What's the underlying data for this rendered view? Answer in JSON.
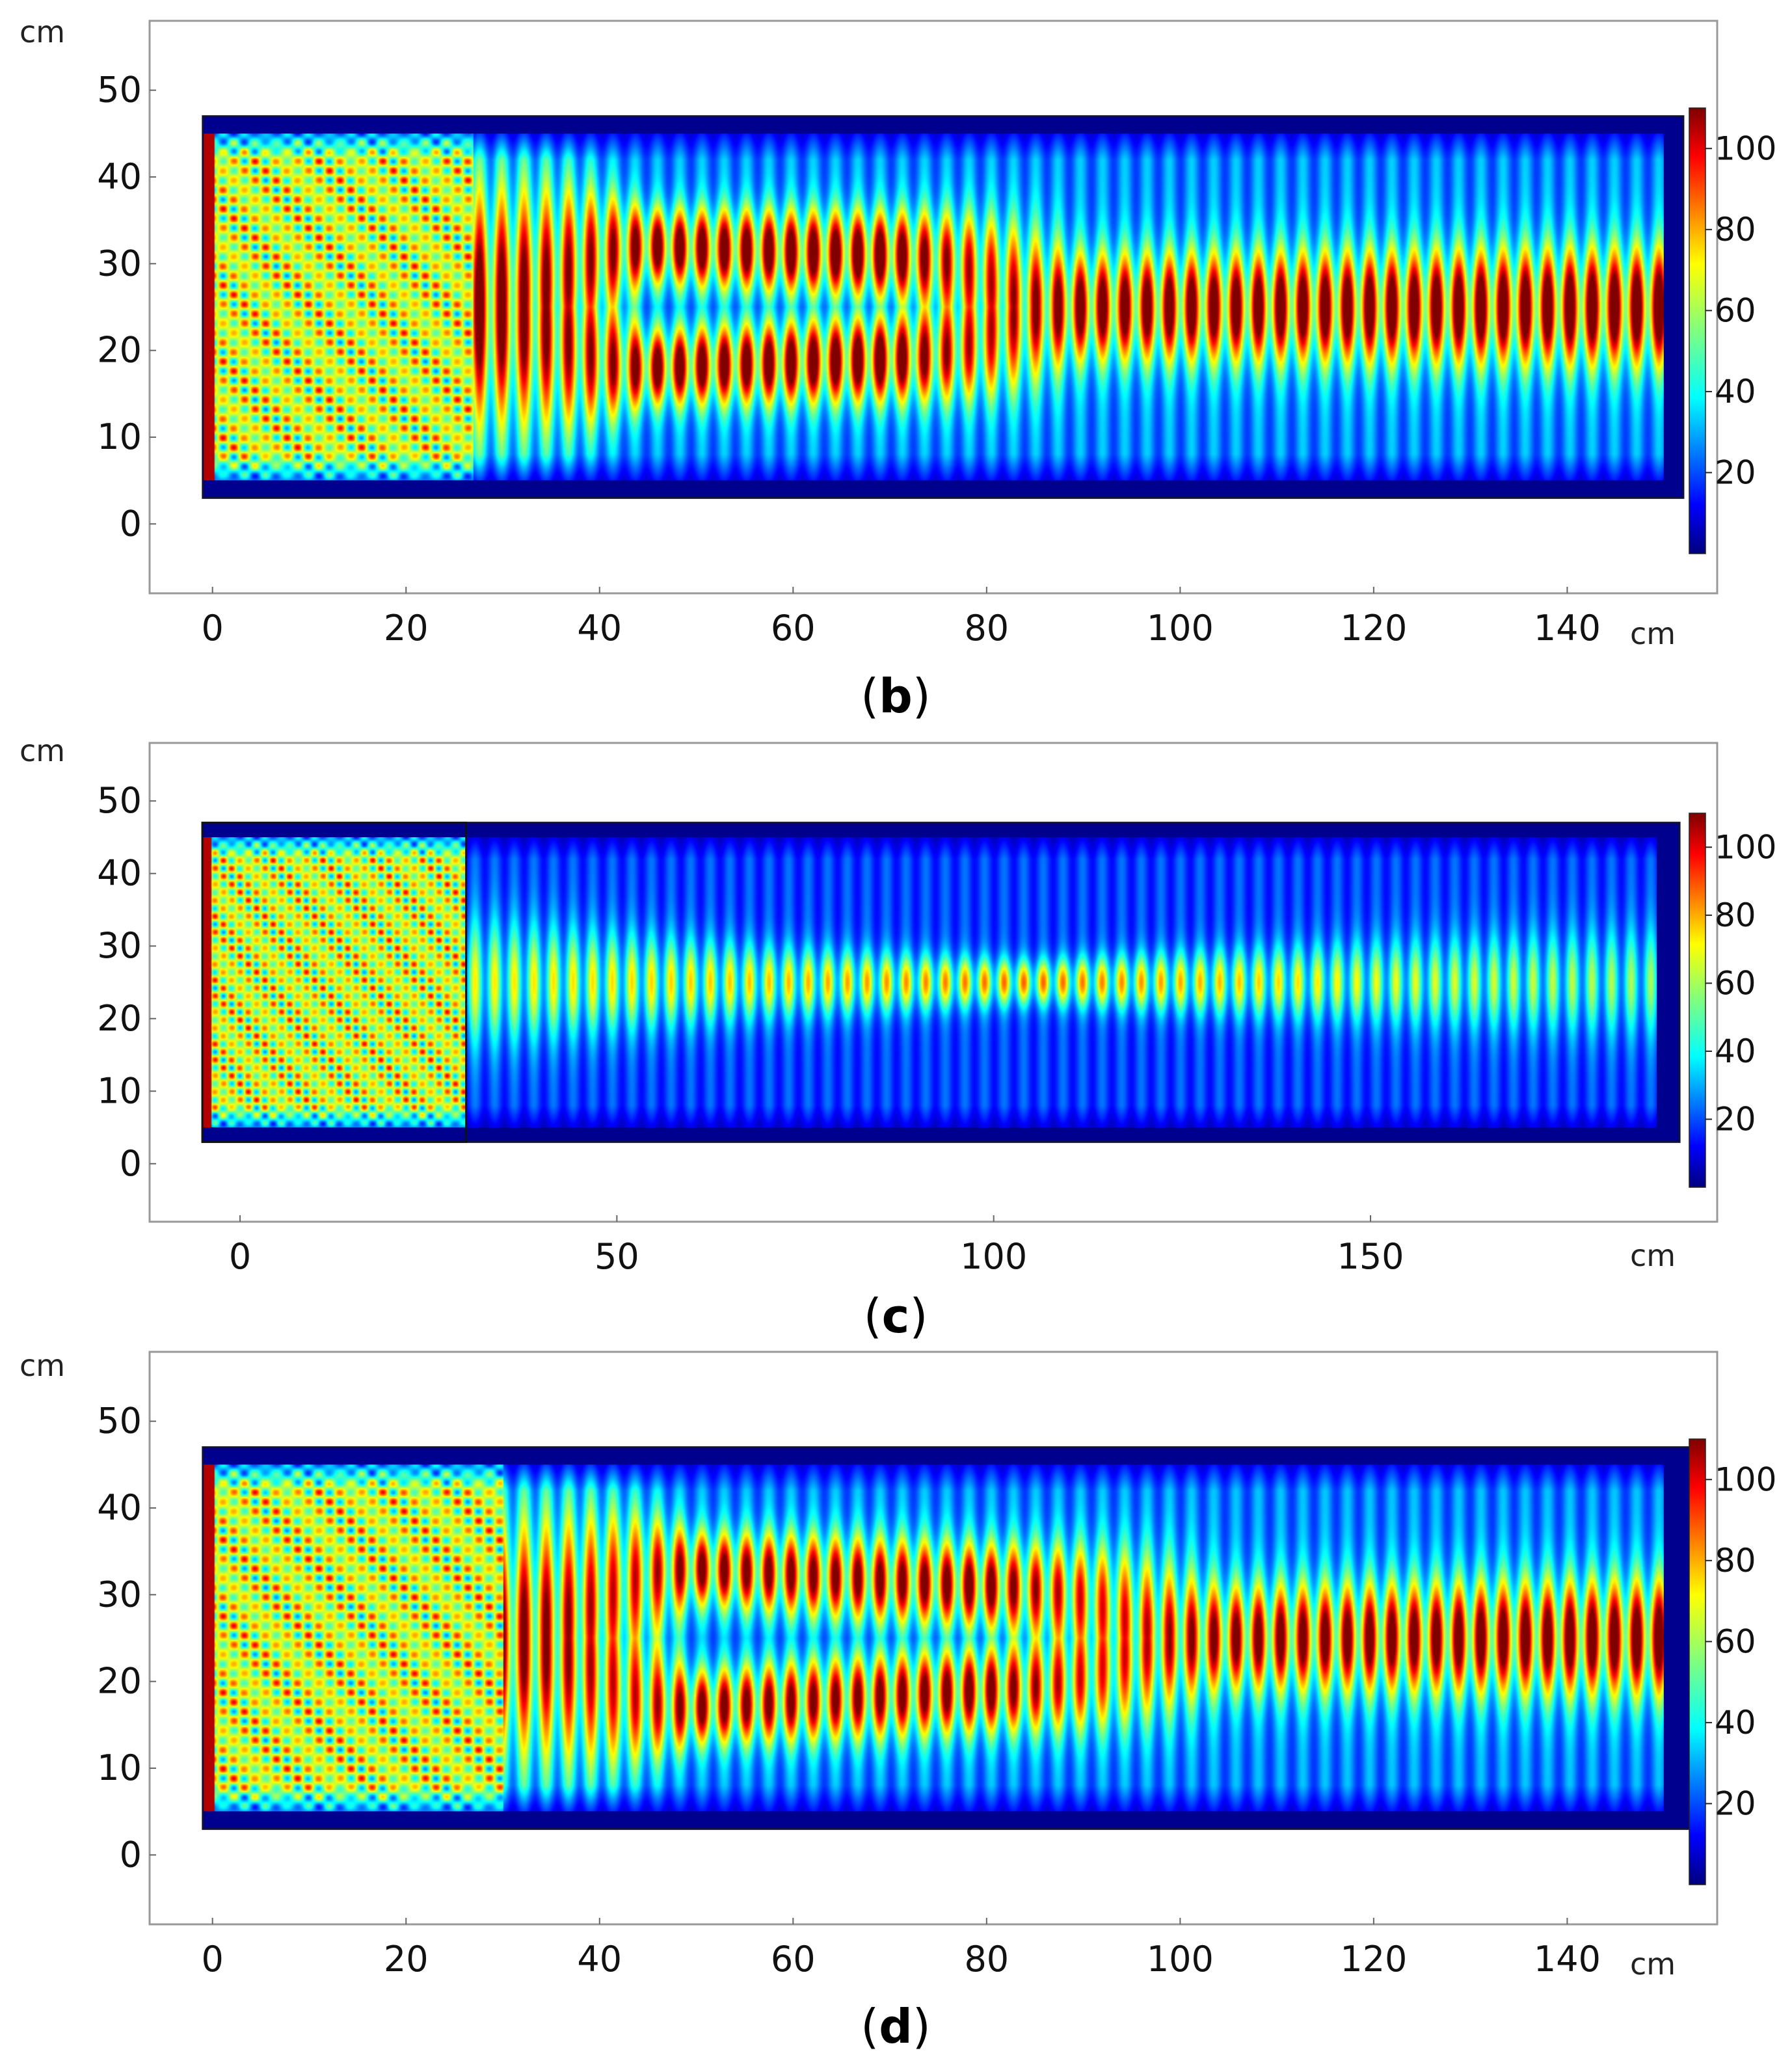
{
  "panels": [
    {
      "caption_open": "(",
      "caption_letter": "b",
      "caption_close": ")",
      "chart_data": {
        "type": "heatmap",
        "xlabel": "cm",
        "ylabel": "cm",
        "xlim": [
          -6.5,
          155.5
        ],
        "ylim": [
          -8,
          58
        ],
        "xticks": [
          0,
          20,
          40,
          60,
          80,
          100,
          120,
          140
        ],
        "yticks": [
          0,
          10,
          20,
          30,
          40,
          50
        ],
        "domain_x": [
          -1,
          152
        ],
        "domain_y": [
          3,
          47
        ],
        "field_x": [
          -1,
          150
        ],
        "field_y": [
          5,
          45
        ],
        "inner_box_x": null,
        "colorbar": {
          "range": [
            0,
            110
          ],
          "ticks": [
            20,
            40,
            60,
            80,
            100
          ],
          "colormap": "jet"
        },
        "field": {
          "ripple_period_cm": 2.3,
          "source_zone_end_cm": 27,
          "beam": [
            {
              "x": 0,
              "centers": [
                25
              ],
              "width": 24,
              "amp": 0.85
            },
            {
              "x": 27,
              "centers": [
                25
              ],
              "width": 22,
              "amp": 0.85
            },
            {
              "x": 45,
              "centers": [
                18,
                32
              ],
              "width": 7,
              "amp": 0.85
            },
            {
              "x": 70,
              "centers": [
                19,
                31
              ],
              "width": 8,
              "amp": 0.9
            },
            {
              "x": 90,
              "centers": [
                25
              ],
              "width": 10,
              "amp": 0.85
            },
            {
              "x": 150,
              "centers": [
                25
              ],
              "width": 11,
              "amp": 0.92
            }
          ],
          "background": 0.33
        }
      }
    },
    {
      "caption_open": "(",
      "caption_letter": "c",
      "caption_close": ")",
      "chart_data": {
        "type": "heatmap",
        "xlabel": "cm",
        "ylabel": "cm",
        "xlim": [
          -12,
          196
        ],
        "ylim": [
          -8,
          58
        ],
        "xticks": [
          0,
          50,
          100,
          150
        ],
        "yticks": [
          0,
          10,
          20,
          30,
          40,
          50
        ],
        "domain_x": [
          -5,
          191
        ],
        "domain_y": [
          3,
          47
        ],
        "field_x": [
          -5,
          188
        ],
        "field_y": [
          5,
          45
        ],
        "inner_box_x": [
          -5,
          30
        ],
        "colorbar": {
          "range": [
            0,
            110
          ],
          "ticks": [
            20,
            40,
            60,
            80,
            100
          ],
          "colormap": "jet"
        },
        "field": {
          "ripple_period_cm": 2.6,
          "source_zone_end_cm": 30,
          "beam": [
            {
              "x": 30,
              "centers": [
                25
              ],
              "width": 14,
              "amp": 0.4
            },
            {
              "x": 70,
              "centers": [
                25
              ],
              "width": 8,
              "amp": 0.45
            },
            {
              "x": 105,
              "centers": [
                25
              ],
              "width": 5,
              "amp": 0.55
            },
            {
              "x": 150,
              "centers": [
                25
              ],
              "width": 9,
              "amp": 0.38
            },
            {
              "x": 188,
              "centers": [
                25
              ],
              "width": 12,
              "amp": 0.3
            }
          ],
          "background": 0.24
        }
      }
    },
    {
      "caption_open": "(",
      "caption_letter": "d",
      "caption_close": ")",
      "chart_data": {
        "type": "heatmap",
        "xlabel": "cm",
        "ylabel": "cm",
        "xlim": [
          -6.5,
          155.5
        ],
        "ylim": [
          -8,
          58
        ],
        "xticks": [
          0,
          20,
          40,
          60,
          80,
          100,
          120,
          140
        ],
        "yticks": [
          0,
          10,
          20,
          30,
          40,
          50
        ],
        "domain_x": [
          -1,
          153
        ],
        "domain_y": [
          3,
          47
        ],
        "field_x": [
          -1,
          150
        ],
        "field_y": [
          5,
          45
        ],
        "inner_box_x": null,
        "colorbar": {
          "range": [
            0,
            110
          ],
          "ticks": [
            20,
            40,
            60,
            80,
            100
          ],
          "colormap": "jet"
        },
        "field": {
          "ripple_period_cm": 2.3,
          "source_zone_end_cm": 30,
          "beam": [
            {
              "x": 0,
              "centers": [
                25
              ],
              "width": 24,
              "amp": 0.8
            },
            {
              "x": 30,
              "centers": [
                25
              ],
              "width": 22,
              "amp": 0.8
            },
            {
              "x": 50,
              "centers": [
                17,
                33
              ],
              "width": 7,
              "amp": 0.8
            },
            {
              "x": 80,
              "centers": [
                19,
                31
              ],
              "width": 8,
              "amp": 0.82
            },
            {
              "x": 105,
              "centers": [
                25
              ],
              "width": 10,
              "amp": 0.8
            },
            {
              "x": 150,
              "centers": [
                25
              ],
              "width": 11,
              "amp": 0.88
            }
          ],
          "background": 0.32
        }
      }
    }
  ]
}
